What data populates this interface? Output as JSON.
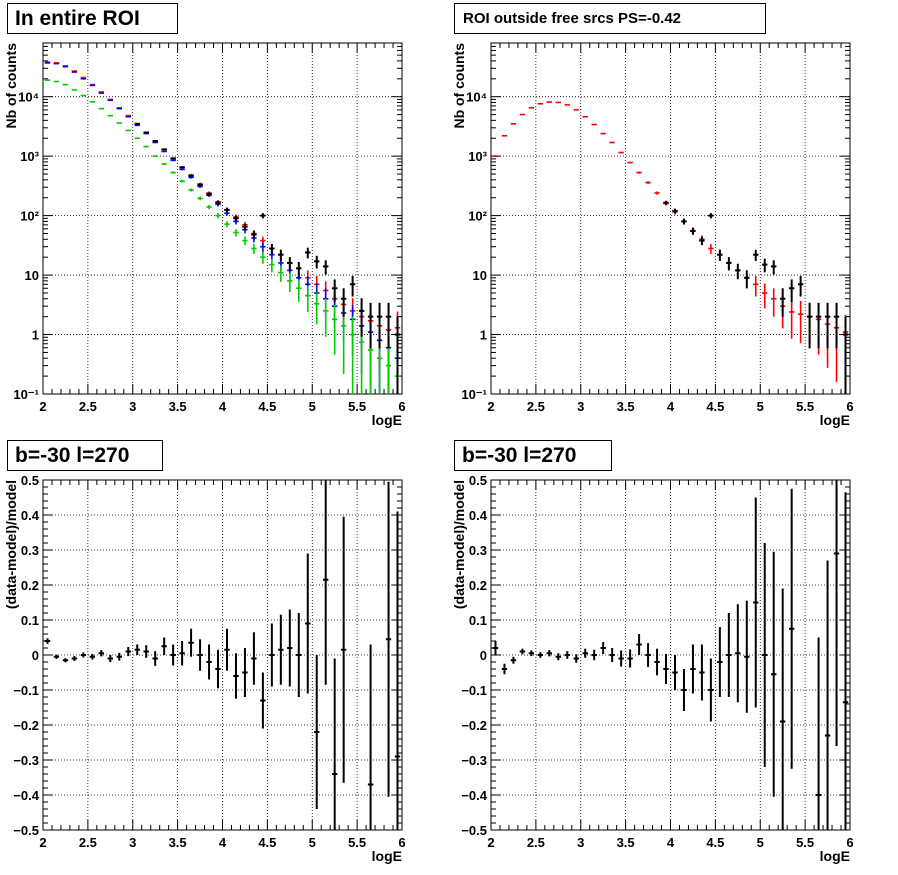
{
  "chart_data": [
    {
      "type": "scatter",
      "title": "In entire ROI",
      "xlabel": "logE",
      "ylabel": "Nb of counts",
      "xlim": [
        2,
        6
      ],
      "ylim": [
        0.1,
        80000
      ],
      "yscale": "log",
      "grid": true,
      "x_ticks": [
        "2",
        "2.5",
        "3",
        "3.5",
        "4",
        "4.5",
        "5",
        "5.5",
        "6"
      ],
      "y_ticks": [
        "10⁻¹",
        "1",
        "10",
        "10²",
        "10³",
        "10⁴"
      ],
      "bin_width": 0.1,
      "x": [
        2.05,
        2.15,
        2.25,
        2.35,
        2.45,
        2.55,
        2.65,
        2.75,
        2.85,
        2.95,
        3.05,
        3.15,
        3.25,
        3.35,
        3.45,
        3.55,
        3.65,
        3.75,
        3.85,
        3.95,
        4.05,
        4.15,
        4.25,
        4.35,
        4.45,
        4.55,
        4.65,
        4.75,
        4.85,
        4.95,
        5.05,
        5.15,
        5.25,
        5.35,
        5.45,
        5.55,
        5.65,
        5.75,
        5.85,
        5.95
      ],
      "series": [
        {
          "color": "#ff0000",
          "style": "errorbar",
          "values": [
            38000,
            37000,
            33000,
            27000,
            21000,
            16000,
            12000,
            9000,
            6500,
            4800,
            3500,
            2500,
            1800,
            1300,
            900,
            650,
            480,
            340,
            240,
            170,
            125,
            95,
            70,
            50,
            38,
            28,
            22,
            16,
            13,
            9,
            7,
            5.5,
            4,
            3.2,
            2.5,
            2,
            1.7,
            1.4,
            1.2,
            1.3
          ]
        },
        {
          "color": "#0000ff",
          "style": "errorbar",
          "values": [
            37000,
            36000,
            32000,
            26000,
            20000,
            15500,
            11500,
            8700,
            6300,
            4600,
            3300,
            2400,
            1700,
            1200,
            850,
            600,
            440,
            310,
            220,
            155,
            110,
            80,
            58,
            42,
            30,
            22,
            16,
            12,
            9,
            7,
            5,
            4,
            3,
            2.3,
            1.8,
            1.4,
            1.1,
            0.8,
            0.6,
            0.4
          ]
        },
        {
          "color": "#00cc00",
          "style": "errorbar",
          "values": [
            19000,
            18000,
            16000,
            13000,
            10500,
            8200,
            6300,
            4800,
            3600,
            2700,
            2000,
            1450,
            1000,
            740,
            530,
            380,
            270,
            195,
            140,
            100,
            72,
            52,
            38,
            28,
            20,
            15,
            11,
            8,
            6,
            4.5,
            3.3,
            2.5,
            1.8,
            1.4,
            1,
            0.75,
            0.55,
            0.4,
            0.3,
            0.2
          ]
        },
        {
          "color": "#000000",
          "style": "errorbar",
          "values": [
            null,
            null,
            null,
            null,
            null,
            null,
            null,
            null,
            null,
            null,
            3500,
            2500,
            1800,
            1300,
            920,
            650,
            470,
            330,
            230,
            165,
            125,
            90,
            65,
            48,
            100,
            28,
            22,
            16,
            13,
            24,
            17,
            14,
            6,
            4,
            7,
            2.5,
            2,
            2,
            2,
            1
          ]
        }
      ]
    },
    {
      "type": "scatter",
      "title": "ROI outside free srcs PS=-0.42",
      "xlabel": "logE",
      "ylabel": "Nb of counts",
      "xlim": [
        2,
        6
      ],
      "ylim": [
        0.1,
        80000
      ],
      "yscale": "log",
      "grid": true,
      "x_ticks": [
        "2",
        "2.5",
        "3",
        "3.5",
        "4",
        "4.5",
        "5",
        "5.5",
        "6"
      ],
      "y_ticks": [
        "10⁻¹",
        "1",
        "10",
        "10²",
        "10³",
        "10⁴"
      ],
      "bin_width": 0.1,
      "x": [
        2.05,
        2.15,
        2.25,
        2.35,
        2.45,
        2.55,
        2.65,
        2.75,
        2.85,
        2.95,
        3.05,
        3.15,
        3.25,
        3.35,
        3.45,
        3.55,
        3.65,
        3.75,
        3.85,
        3.95,
        4.05,
        4.15,
        4.25,
        4.35,
        4.45,
        4.55,
        4.65,
        4.75,
        4.85,
        4.95,
        5.05,
        5.15,
        5.25,
        5.35,
        5.45,
        5.55,
        5.65,
        5.75,
        5.85,
        5.95
      ],
      "series": [
        {
          "color": "#ff0000",
          "style": "errorbar",
          "values": [
            1000,
            2200,
            3500,
            5000,
            6500,
            7600,
            8100,
            8000,
            7300,
            6000,
            4600,
            3400,
            2400,
            1700,
            1150,
            780,
            530,
            360,
            240,
            160,
            115,
            80,
            56,
            40,
            28,
            22,
            16,
            12,
            9,
            7,
            5,
            4,
            3,
            2.4,
            2.2,
            2,
            1.8,
            1.5,
            1.3,
            1.1
          ]
        },
        {
          "color": "#000000",
          "style": "errorbar",
          "values": [
            null,
            null,
            null,
            null,
            null,
            null,
            null,
            null,
            null,
            null,
            null,
            null,
            null,
            null,
            null,
            null,
            null,
            null,
            null,
            165,
            120,
            80,
            55,
            38,
            100,
            22,
            16,
            12,
            9,
            22,
            15,
            14,
            4,
            6,
            7,
            2,
            2,
            2,
            2,
            1
          ]
        }
      ]
    },
    {
      "type": "scatter",
      "title": "b=-30 l=270",
      "xlabel": "logE",
      "ylabel": "(data-model)/model",
      "xlim": [
        2,
        6
      ],
      "ylim": [
        -0.5,
        0.5
      ],
      "grid": true,
      "x_ticks": [
        "2",
        "2.5",
        "3",
        "3.5",
        "4",
        "4.5",
        "5",
        "5.5",
        "6"
      ],
      "y_ticks": [
        "−0.5",
        "−0.4",
        "−0.3",
        "−0.2",
        "−0.1",
        "0",
        "0.1",
        "0.2",
        "0.3",
        "0.4",
        "0.5"
      ],
      "bin_width": 0.1,
      "x": [
        2.05,
        2.15,
        2.25,
        2.35,
        2.45,
        2.55,
        2.65,
        2.75,
        2.85,
        2.95,
        3.05,
        3.15,
        3.25,
        3.35,
        3.45,
        3.55,
        3.65,
        3.75,
        3.85,
        3.95,
        4.05,
        4.15,
        4.25,
        4.35,
        4.45,
        4.55,
        4.65,
        4.75,
        4.85,
        4.95,
        5.05,
        5.15,
        5.25,
        5.35,
        5.45,
        5.55,
        5.65,
        5.75,
        5.85,
        5.95
      ],
      "series": [
        {
          "color": "#000000",
          "style": "errorbar",
          "values": [
            0.04,
            -0.005,
            -0.015,
            -0.01,
            0.0,
            -0.005,
            0.005,
            -0.01,
            -0.005,
            0.01,
            0.015,
            0.01,
            -0.01,
            0.025,
            0.0,
            0.005,
            0.035,
            0.0,
            -0.02,
            -0.04,
            0.015,
            -0.06,
            -0.05,
            -0.01,
            -0.13,
            0.0,
            0.015,
            0.02,
            0.0,
            0.09,
            -0.22,
            0.215,
            -0.34,
            0.015,
            null,
            null,
            -0.37,
            null,
            0.045,
            -0.29
          ],
          "errors": [
            0.008,
            0.006,
            0.006,
            0.007,
            0.007,
            0.008,
            0.009,
            0.01,
            0.011,
            0.013,
            0.015,
            0.018,
            0.021,
            0.025,
            0.03,
            0.035,
            0.04,
            0.045,
            0.05,
            0.055,
            0.06,
            0.065,
            0.07,
            0.075,
            0.08,
            0.09,
            0.1,
            0.11,
            0.12,
            0.2,
            0.22,
            0.3,
            0.33,
            0.38,
            null,
            null,
            0.4,
            null,
            0.45,
            0.7
          ]
        }
      ]
    },
    {
      "type": "scatter",
      "title": "b=-30 l=270",
      "xlabel": "logE",
      "ylabel": "(data-model)/model",
      "xlim": [
        2,
        6
      ],
      "ylim": [
        -0.5,
        0.5
      ],
      "grid": true,
      "x_ticks": [
        "2",
        "2.5",
        "3",
        "3.5",
        "4",
        "4.5",
        "5",
        "5.5",
        "6"
      ],
      "y_ticks": [
        "−0.5",
        "−0.4",
        "−0.3",
        "−0.2",
        "−0.1",
        "0",
        "0.1",
        "0.2",
        "0.3",
        "0.4",
        "0.5"
      ],
      "bin_width": 0.1,
      "x": [
        2.05,
        2.15,
        2.25,
        2.35,
        2.45,
        2.55,
        2.65,
        2.75,
        2.85,
        2.95,
        3.05,
        3.15,
        3.25,
        3.35,
        3.45,
        3.55,
        3.65,
        3.75,
        3.85,
        3.95,
        4.05,
        4.15,
        4.25,
        4.35,
        4.45,
        4.55,
        4.65,
        4.75,
        4.85,
        4.95,
        5.05,
        5.15,
        5.25,
        5.35,
        5.45,
        5.55,
        5.65,
        5.75,
        5.85,
        5.95
      ],
      "series": [
        {
          "color": "#000000",
          "style": "errorbar",
          "values": [
            0.02,
            -0.04,
            -0.015,
            0.01,
            0.005,
            0.0,
            0.005,
            -0.005,
            0.0,
            -0.01,
            0.005,
            0.0,
            0.02,
            0.0,
            -0.01,
            -0.01,
            0.03,
            0.0,
            -0.02,
            -0.04,
            -0.05,
            -0.1,
            -0.04,
            -0.05,
            -0.1,
            -0.02,
            0.0,
            0.005,
            -0.005,
            0.15,
            0.0,
            -0.055,
            -0.19,
            0.075,
            null,
            null,
            -0.4,
            -0.23,
            0.29,
            -0.135
          ],
          "errors": [
            0.02,
            0.015,
            0.01,
            0.008,
            0.008,
            0.008,
            0.009,
            0.01,
            0.011,
            0.012,
            0.013,
            0.015,
            0.017,
            0.02,
            0.023,
            0.026,
            0.03,
            0.034,
            0.038,
            0.043,
            0.05,
            0.06,
            0.07,
            0.08,
            0.09,
            0.1,
            0.12,
            0.14,
            0.16,
            0.3,
            0.32,
            0.35,
            0.38,
            0.4,
            null,
            null,
            0.45,
            0.5,
            0.55,
            0.6
          ]
        }
      ]
    }
  ]
}
